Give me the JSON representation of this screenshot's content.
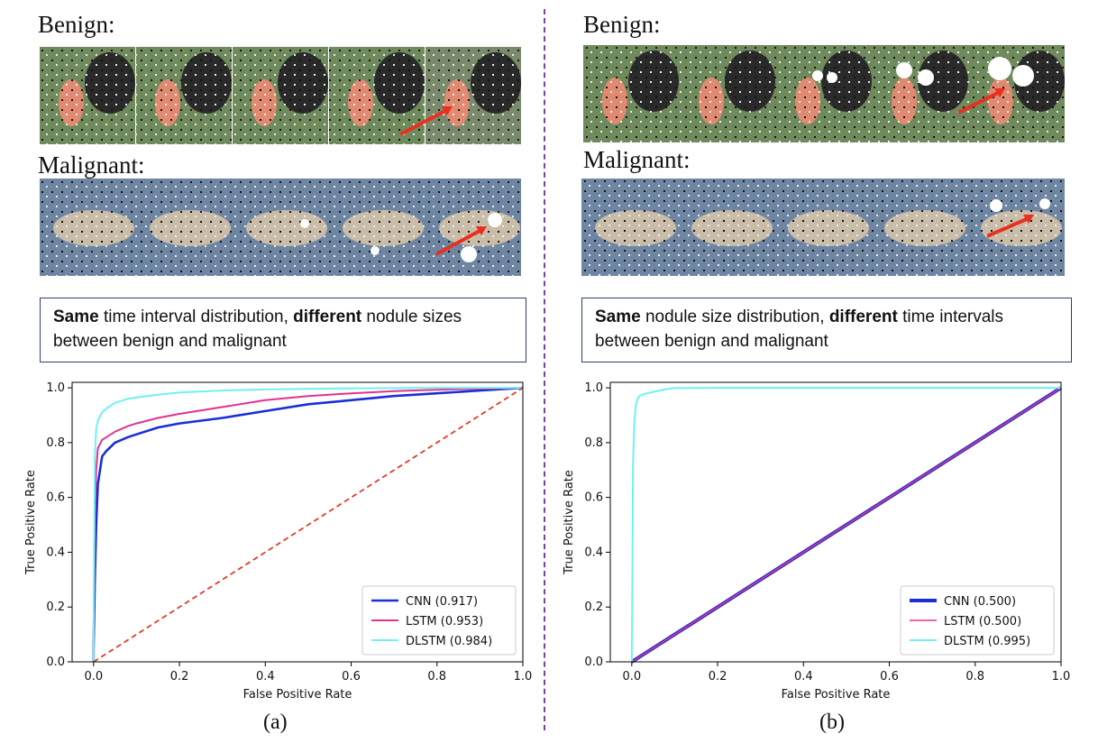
{
  "divider_color": "#7b3fa0",
  "panels": [
    {
      "benign_label": "Benign:",
      "malignant_label": "Malignant:",
      "caption": {
        "bold1": "Same",
        "text1": " time interval distribution, ",
        "bold2": "different",
        "text2": " nodule sizes between benign and malignant"
      },
      "sub_label": "(a)"
    },
    {
      "benign_label": "Benign:",
      "malignant_label": "Malignant:",
      "caption": {
        "bold1": "Same",
        "text1": " nodule size distribution, ",
        "bold2": "different",
        "text2": " time intervals between benign and malignant"
      },
      "sub_label": "(b)"
    }
  ],
  "chart_data": [
    {
      "type": "line",
      "xlabel": "False Positive Rate",
      "ylabel": "True Positive Rate",
      "xlim": [
        -0.05,
        1.0
      ],
      "ylim": [
        0.0,
        1.02
      ],
      "xticks": [
        "0.0",
        "0.2",
        "0.4",
        "0.6",
        "0.8",
        "1.0"
      ],
      "yticks": [
        "0.0",
        "0.2",
        "0.4",
        "0.6",
        "0.8",
        "1.0"
      ],
      "legend_position": "lower-right",
      "series": [
        {
          "name": "CNN (0.917)",
          "color": "#1a2fd6",
          "width": 2.6,
          "dash": false,
          "x": [
            0,
            0,
            0.003,
            0.006,
            0.01,
            0.02,
            0.03,
            0.05,
            0.08,
            0.1,
            0.15,
            0.2,
            0.3,
            0.4,
            0.5,
            0.6,
            0.7,
            0.8,
            0.9,
            1.0
          ],
          "y": [
            0,
            0.04,
            0.3,
            0.5,
            0.65,
            0.75,
            0.77,
            0.8,
            0.82,
            0.83,
            0.855,
            0.87,
            0.89,
            0.915,
            0.94,
            0.955,
            0.97,
            0.98,
            0.99,
            1.0
          ]
        },
        {
          "name": "LSTM (0.953)",
          "color": "#e0338f",
          "width": 2,
          "dash": false,
          "x": [
            0,
            0,
            0.003,
            0.006,
            0.01,
            0.02,
            0.03,
            0.05,
            0.08,
            0.1,
            0.15,
            0.2,
            0.3,
            0.4,
            0.5,
            0.6,
            0.7,
            0.8,
            0.9,
            1.0
          ],
          "y": [
            0,
            0.09,
            0.55,
            0.7,
            0.78,
            0.81,
            0.82,
            0.84,
            0.86,
            0.87,
            0.89,
            0.905,
            0.93,
            0.955,
            0.97,
            0.98,
            0.988,
            0.993,
            0.997,
            1.0
          ]
        },
        {
          "name": "DLSTM (0.984)",
          "color": "#6ff2ef",
          "width": 2,
          "dash": false,
          "x": [
            0,
            0,
            0.003,
            0.006,
            0.01,
            0.02,
            0.03,
            0.05,
            0.08,
            0.1,
            0.15,
            0.2,
            0.3,
            0.4,
            0.5,
            0.6,
            0.7,
            0.8,
            0.9,
            1.0
          ],
          "y": [
            0,
            0.12,
            0.75,
            0.85,
            0.88,
            0.91,
            0.925,
            0.945,
            0.96,
            0.965,
            0.975,
            0.983,
            0.99,
            0.994,
            0.996,
            0.998,
            0.999,
            1.0,
            1.0,
            1.0
          ]
        },
        {
          "name": "",
          "color": "#e33b2a",
          "width": 1.8,
          "dash": true,
          "x": [
            0,
            1.0
          ],
          "y": [
            0,
            1.0
          ]
        }
      ]
    },
    {
      "type": "line",
      "xlabel": "False Positive Rate",
      "ylabel": "True Positive Rate",
      "xlim": [
        -0.05,
        1.0
      ],
      "ylim": [
        0.0,
        1.02
      ],
      "xticks": [
        "0.0",
        "0.2",
        "0.4",
        "0.6",
        "0.8",
        "1.0"
      ],
      "yticks": [
        "0.0",
        "0.2",
        "0.4",
        "0.6",
        "0.8",
        "1.0"
      ],
      "legend_position": "lower-right",
      "series": [
        {
          "name": "CNN (0.500)",
          "color": "#1a2fd6",
          "width": 4,
          "dash": false,
          "x": [
            0,
            1.0
          ],
          "y": [
            0,
            1.0
          ]
        },
        {
          "name": "LSTM (0.500)",
          "color": "#e0338f",
          "width": 1.6,
          "dash": false,
          "x": [
            0,
            1.0
          ],
          "y": [
            0,
            1.0
          ]
        },
        {
          "name": "DLSTM (0.995)",
          "color": "#6ff2ef",
          "width": 2,
          "dash": false,
          "x": [
            0,
            0.001,
            0.003,
            0.006,
            0.01,
            0.015,
            0.02,
            0.03,
            0.05,
            0.08,
            0.1,
            0.2,
            1.0
          ],
          "y": [
            0,
            0.2,
            0.72,
            0.88,
            0.94,
            0.965,
            0.972,
            0.978,
            0.985,
            0.995,
            0.999,
            1.0,
            1.0
          ]
        }
      ]
    }
  ]
}
